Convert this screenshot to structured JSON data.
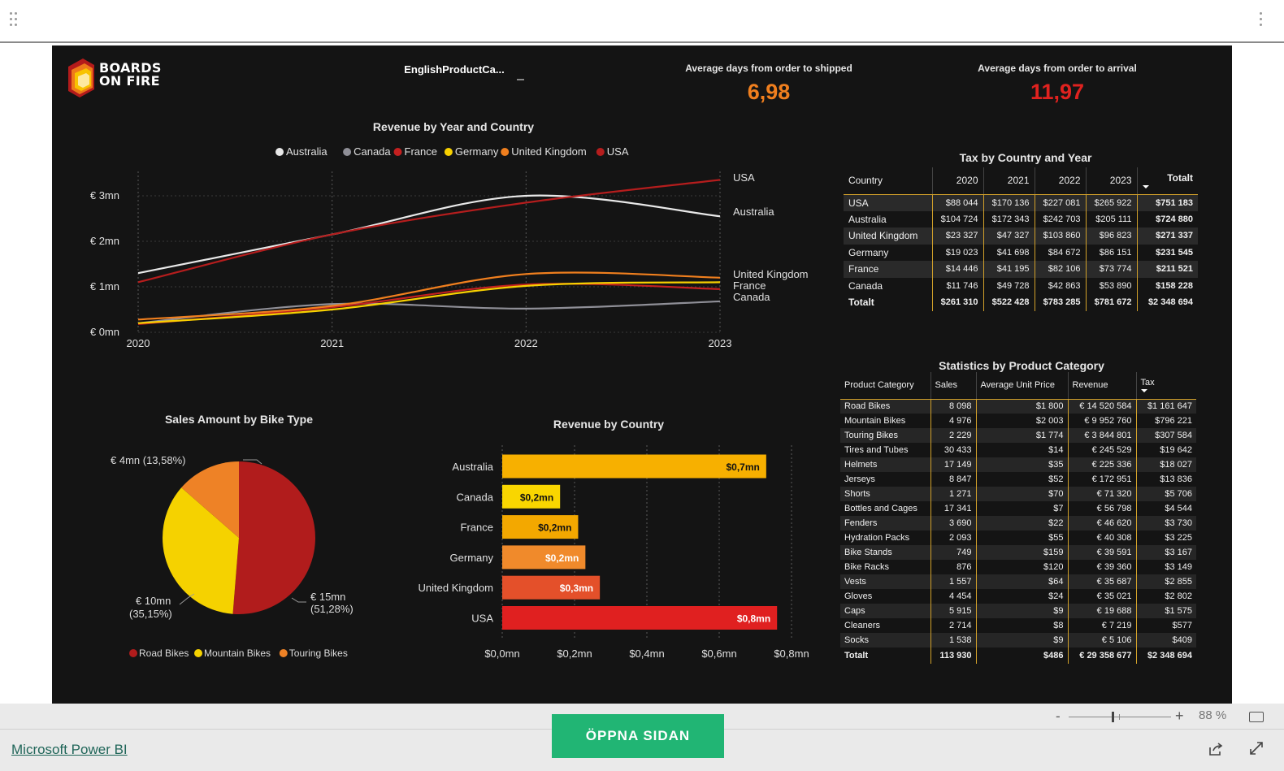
{
  "header": {
    "grip_icon": "drag-grip-icon",
    "menu_icon": "more-vertical-icon"
  },
  "logo": {
    "line1": "BOARDS",
    "line2": "ON FIRE"
  },
  "filter": {
    "title": "EnglishProductCa...",
    "value_icon": "dash"
  },
  "kpi": [
    {
      "label": "Average days from order to shipped",
      "value": "6,98",
      "color": "#f07f1e"
    },
    {
      "label": "Average days from order to arrival",
      "value": "11,97",
      "color": "#e0221f"
    }
  ],
  "line_chart": {
    "title": "Revenue by Year and Country",
    "legend": [
      "Australia",
      "Canada",
      "France",
      "Germany",
      "United Kingdom",
      "USA"
    ],
    "y_ticks": [
      "€ 0mn",
      "€ 1mn",
      "€ 2mn",
      "€ 3mn"
    ],
    "x_ticks": [
      "2020",
      "2021",
      "2022",
      "2023"
    ],
    "end_labels": [
      "USA",
      "Australia",
      "United Kingdom",
      "France",
      "Canada"
    ]
  },
  "tax_table": {
    "title": "Tax by Country and Year",
    "columns": [
      "Country",
      "2020",
      "2021",
      "2022",
      "2023",
      "Totalt"
    ],
    "rows": [
      [
        "USA",
        "$88 044",
        "$170 136",
        "$227 081",
        "$265 922",
        "$751 183"
      ],
      [
        "Australia",
        "$104 724",
        "$172 343",
        "$242 703",
        "$205 111",
        "$724 880"
      ],
      [
        "United Kingdom",
        "$23 327",
        "$47 327",
        "$103 860",
        "$96 823",
        "$271 337"
      ],
      [
        "Germany",
        "$19 023",
        "$41 698",
        "$84 672",
        "$86 151",
        "$231 545"
      ],
      [
        "France",
        "$14 446",
        "$41 195",
        "$82 106",
        "$73 774",
        "$211 521"
      ],
      [
        "Canada",
        "$11 746",
        "$49 728",
        "$42 863",
        "$53 890",
        "$158 228"
      ]
    ],
    "total": [
      "Totalt",
      "$261 310",
      "$522 428",
      "$783 285",
      "$781 672",
      "$2 348 694"
    ]
  },
  "stats_table": {
    "title": "Statistics by Product Category",
    "columns": [
      "Product Category",
      "Sales",
      "Average Unit Price",
      "Revenue",
      "Tax"
    ],
    "rows": [
      [
        "Road Bikes",
        "8 098",
        "$1 800",
        "€ 14 520 584",
        "$1 161 647"
      ],
      [
        "Mountain Bikes",
        "4 976",
        "$2 003",
        "€ 9 952 760",
        "$796 221"
      ],
      [
        "Touring Bikes",
        "2 229",
        "$1 774",
        "€ 3 844 801",
        "$307 584"
      ],
      [
        "Tires and Tubes",
        "30 433",
        "$14",
        "€ 245 529",
        "$19 642"
      ],
      [
        "Helmets",
        "17 149",
        "$35",
        "€ 225 336",
        "$18 027"
      ],
      [
        "Jerseys",
        "8 847",
        "$52",
        "€ 172 951",
        "$13 836"
      ],
      [
        "Shorts",
        "1 271",
        "$70",
        "€ 71 320",
        "$5 706"
      ],
      [
        "Bottles and Cages",
        "17 341",
        "$7",
        "€ 56 798",
        "$4 544"
      ],
      [
        "Fenders",
        "3 690",
        "$22",
        "€ 46 620",
        "$3 730"
      ],
      [
        "Hydration Packs",
        "2 093",
        "$55",
        "€ 40 308",
        "$3 225"
      ],
      [
        "Bike Stands",
        "749",
        "$159",
        "€ 39 591",
        "$3 167"
      ],
      [
        "Bike Racks",
        "876",
        "$120",
        "€ 39 360",
        "$3 149"
      ],
      [
        "Vests",
        "1 557",
        "$64",
        "€ 35 687",
        "$2 855"
      ],
      [
        "Gloves",
        "4 454",
        "$24",
        "€ 35 021",
        "$2 802"
      ],
      [
        "Caps",
        "5 915",
        "$9",
        "€ 19 688",
        "$1 575"
      ],
      [
        "Cleaners",
        "2 714",
        "$8",
        "€ 7 219",
        "$577"
      ],
      [
        "Socks",
        "1 538",
        "$9",
        "€ 5 106",
        "$409"
      ]
    ],
    "total": [
      "Totalt",
      "113 930",
      "$486",
      "€ 29 358 677",
      "$2 348 694"
    ]
  },
  "pie": {
    "title": "Sales Amount by Bike Type",
    "labels": [
      "€ 4mn (13,58%)",
      "€ 10mn",
      "(35,15%)",
      "€ 15mn",
      "(51,28%)"
    ],
    "legend": [
      "Road Bikes",
      "Mountain Bikes",
      "Touring Bikes"
    ]
  },
  "bar_chart": {
    "title": "Revenue by Country",
    "categories": [
      "Australia",
      "Canada",
      "France",
      "Germany",
      "United Kingdom",
      "USA"
    ],
    "data_labels": [
      "$0,7mn",
      "$0,2mn",
      "$0,2mn",
      "$0,2mn",
      "$0,3mn",
      "$0,8mn"
    ],
    "x_ticks": [
      "$0,0mn",
      "$0,2mn",
      "$0,4mn",
      "$0,6mn",
      "$0,8mn"
    ]
  },
  "chart_data": [
    {
      "type": "line",
      "title": "Revenue by Year and Country",
      "x": [
        2020,
        2021,
        2022,
        2023
      ],
      "ylim": [
        0,
        3.5
      ],
      "grid": "vertical dotted",
      "legend": "top",
      "series": [
        {
          "name": "Australia",
          "color": "#e8e8e8",
          "values": [
            1.3,
            2.15,
            3.0,
            2.55
          ]
        },
        {
          "name": "Canada",
          "color": "#8f8f97",
          "values": [
            0.2,
            0.62,
            0.52,
            0.68
          ]
        },
        {
          "name": "France",
          "color": "#c42020",
          "values": [
            0.18,
            0.55,
            1.05,
            0.95
          ]
        },
        {
          "name": "Germany",
          "color": "#f7d000",
          "values": [
            0.2,
            0.5,
            1.02,
            1.1
          ]
        },
        {
          "name": "United Kingdom",
          "color": "#f07f1e",
          "values": [
            0.28,
            0.58,
            1.28,
            1.2
          ]
        },
        {
          "name": "USA",
          "color": "#b51d1d",
          "values": [
            1.1,
            2.15,
            2.85,
            3.35
          ]
        }
      ]
    },
    {
      "type": "pie",
      "title": "Sales Amount by Bike Type",
      "legend": "bottom",
      "categories": [
        "Road Bikes",
        "Mountain Bikes",
        "Touring Bikes"
      ],
      "values": [
        51.28,
        35.15,
        13.58
      ],
      "colors": [
        "#b11c1c",
        "#f5d200",
        "#ee8226"
      ]
    },
    {
      "type": "bar",
      "title": "Revenue by Country",
      "orientation": "horizontal",
      "categories": [
        "Australia",
        "Canada",
        "France",
        "Germany",
        "United Kingdom",
        "USA"
      ],
      "values": [
        0.73,
        0.16,
        0.21,
        0.23,
        0.27,
        0.76
      ],
      "colors": [
        "#f7b000",
        "#f9d600",
        "#f3a800",
        "#f08a2b",
        "#e4502a",
        "#e02020"
      ],
      "xlim": [
        0,
        0.8
      ]
    }
  ],
  "footer": {
    "open_button": "ÖPPNA SIDAN",
    "link": "Microsoft Power BI",
    "zoom_minus": "-",
    "zoom_plus": "+",
    "zoom_label": "88 %",
    "zoom_level": 0.88,
    "icons": [
      "fit-to-page-icon",
      "share-icon",
      "fullscreen-icon"
    ]
  }
}
